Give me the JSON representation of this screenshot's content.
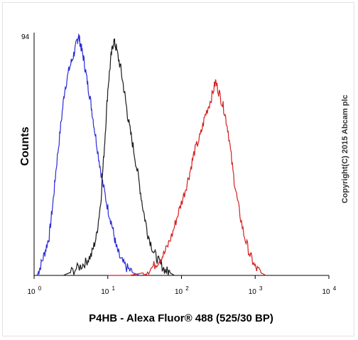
{
  "chart_data": {
    "type": "line",
    "xlabel": "P4HB - Alexa Fluor® 488 (525/30 BP)",
    "ylabel": "Counts",
    "x_scale": "log",
    "xlim": [
      1,
      10000
    ],
    "ylim": [
      0,
      94
    ],
    "y_ticks": [
      "94"
    ],
    "x_ticks": [
      {
        "base": "10",
        "exp": "0"
      },
      {
        "base": "10",
        "exp": "1"
      },
      {
        "base": "10",
        "exp": "2"
      },
      {
        "base": "10",
        "exp": "3"
      },
      {
        "base": "10",
        "exp": "4"
      }
    ],
    "series": [
      {
        "color": "#2b2bd9",
        "x": [
          1.1,
          1.2,
          1.4,
          1.6,
          1.8,
          2.0,
          2.3,
          2.6,
          3.0,
          3.4,
          3.8,
          4.0,
          4.3,
          4.7,
          5.2,
          5.8,
          6.5,
          7.5,
          8.5,
          10,
          11.5,
          13,
          15,
          18,
          22,
          27
        ],
        "y": [
          0,
          3,
          9,
          15,
          28,
          42,
          58,
          72,
          80,
          85,
          90,
          93,
          89,
          84,
          76,
          68,
          58,
          46,
          36,
          26,
          19,
          11,
          6,
          3,
          1,
          0
        ]
      },
      {
        "color": "#1a1a1a",
        "x": [
          2.5,
          3,
          4,
          5,
          6,
          7,
          8,
          9,
          10,
          11,
          12,
          13,
          15,
          17,
          19,
          22,
          26,
          30,
          35,
          42,
          50,
          60,
          70,
          80
        ],
        "y": [
          0,
          1,
          3,
          5,
          8,
          15,
          28,
          50,
          72,
          84,
          91,
          88,
          80,
          70,
          60,
          50,
          38,
          26,
          16,
          9,
          5,
          2,
          1,
          0
        ]
      },
      {
        "color": "#d42020",
        "x": [
          10,
          20,
          30,
          40,
          50,
          60,
          75,
          90,
          110,
          130,
          150,
          180,
          210,
          250,
          290,
          330,
          380,
          430,
          500,
          580,
          700,
          850,
          1000,
          1200,
          1400
        ],
        "y": [
          0,
          0,
          1,
          3,
          6,
          9,
          16,
          24,
          32,
          40,
          48,
          54,
          62,
          68,
          75,
          70,
          64,
          56,
          40,
          28,
          16,
          8,
          3,
          1,
          0
        ]
      }
    ]
  },
  "watermark": "Copyright(C) 2015 Abcam plc"
}
